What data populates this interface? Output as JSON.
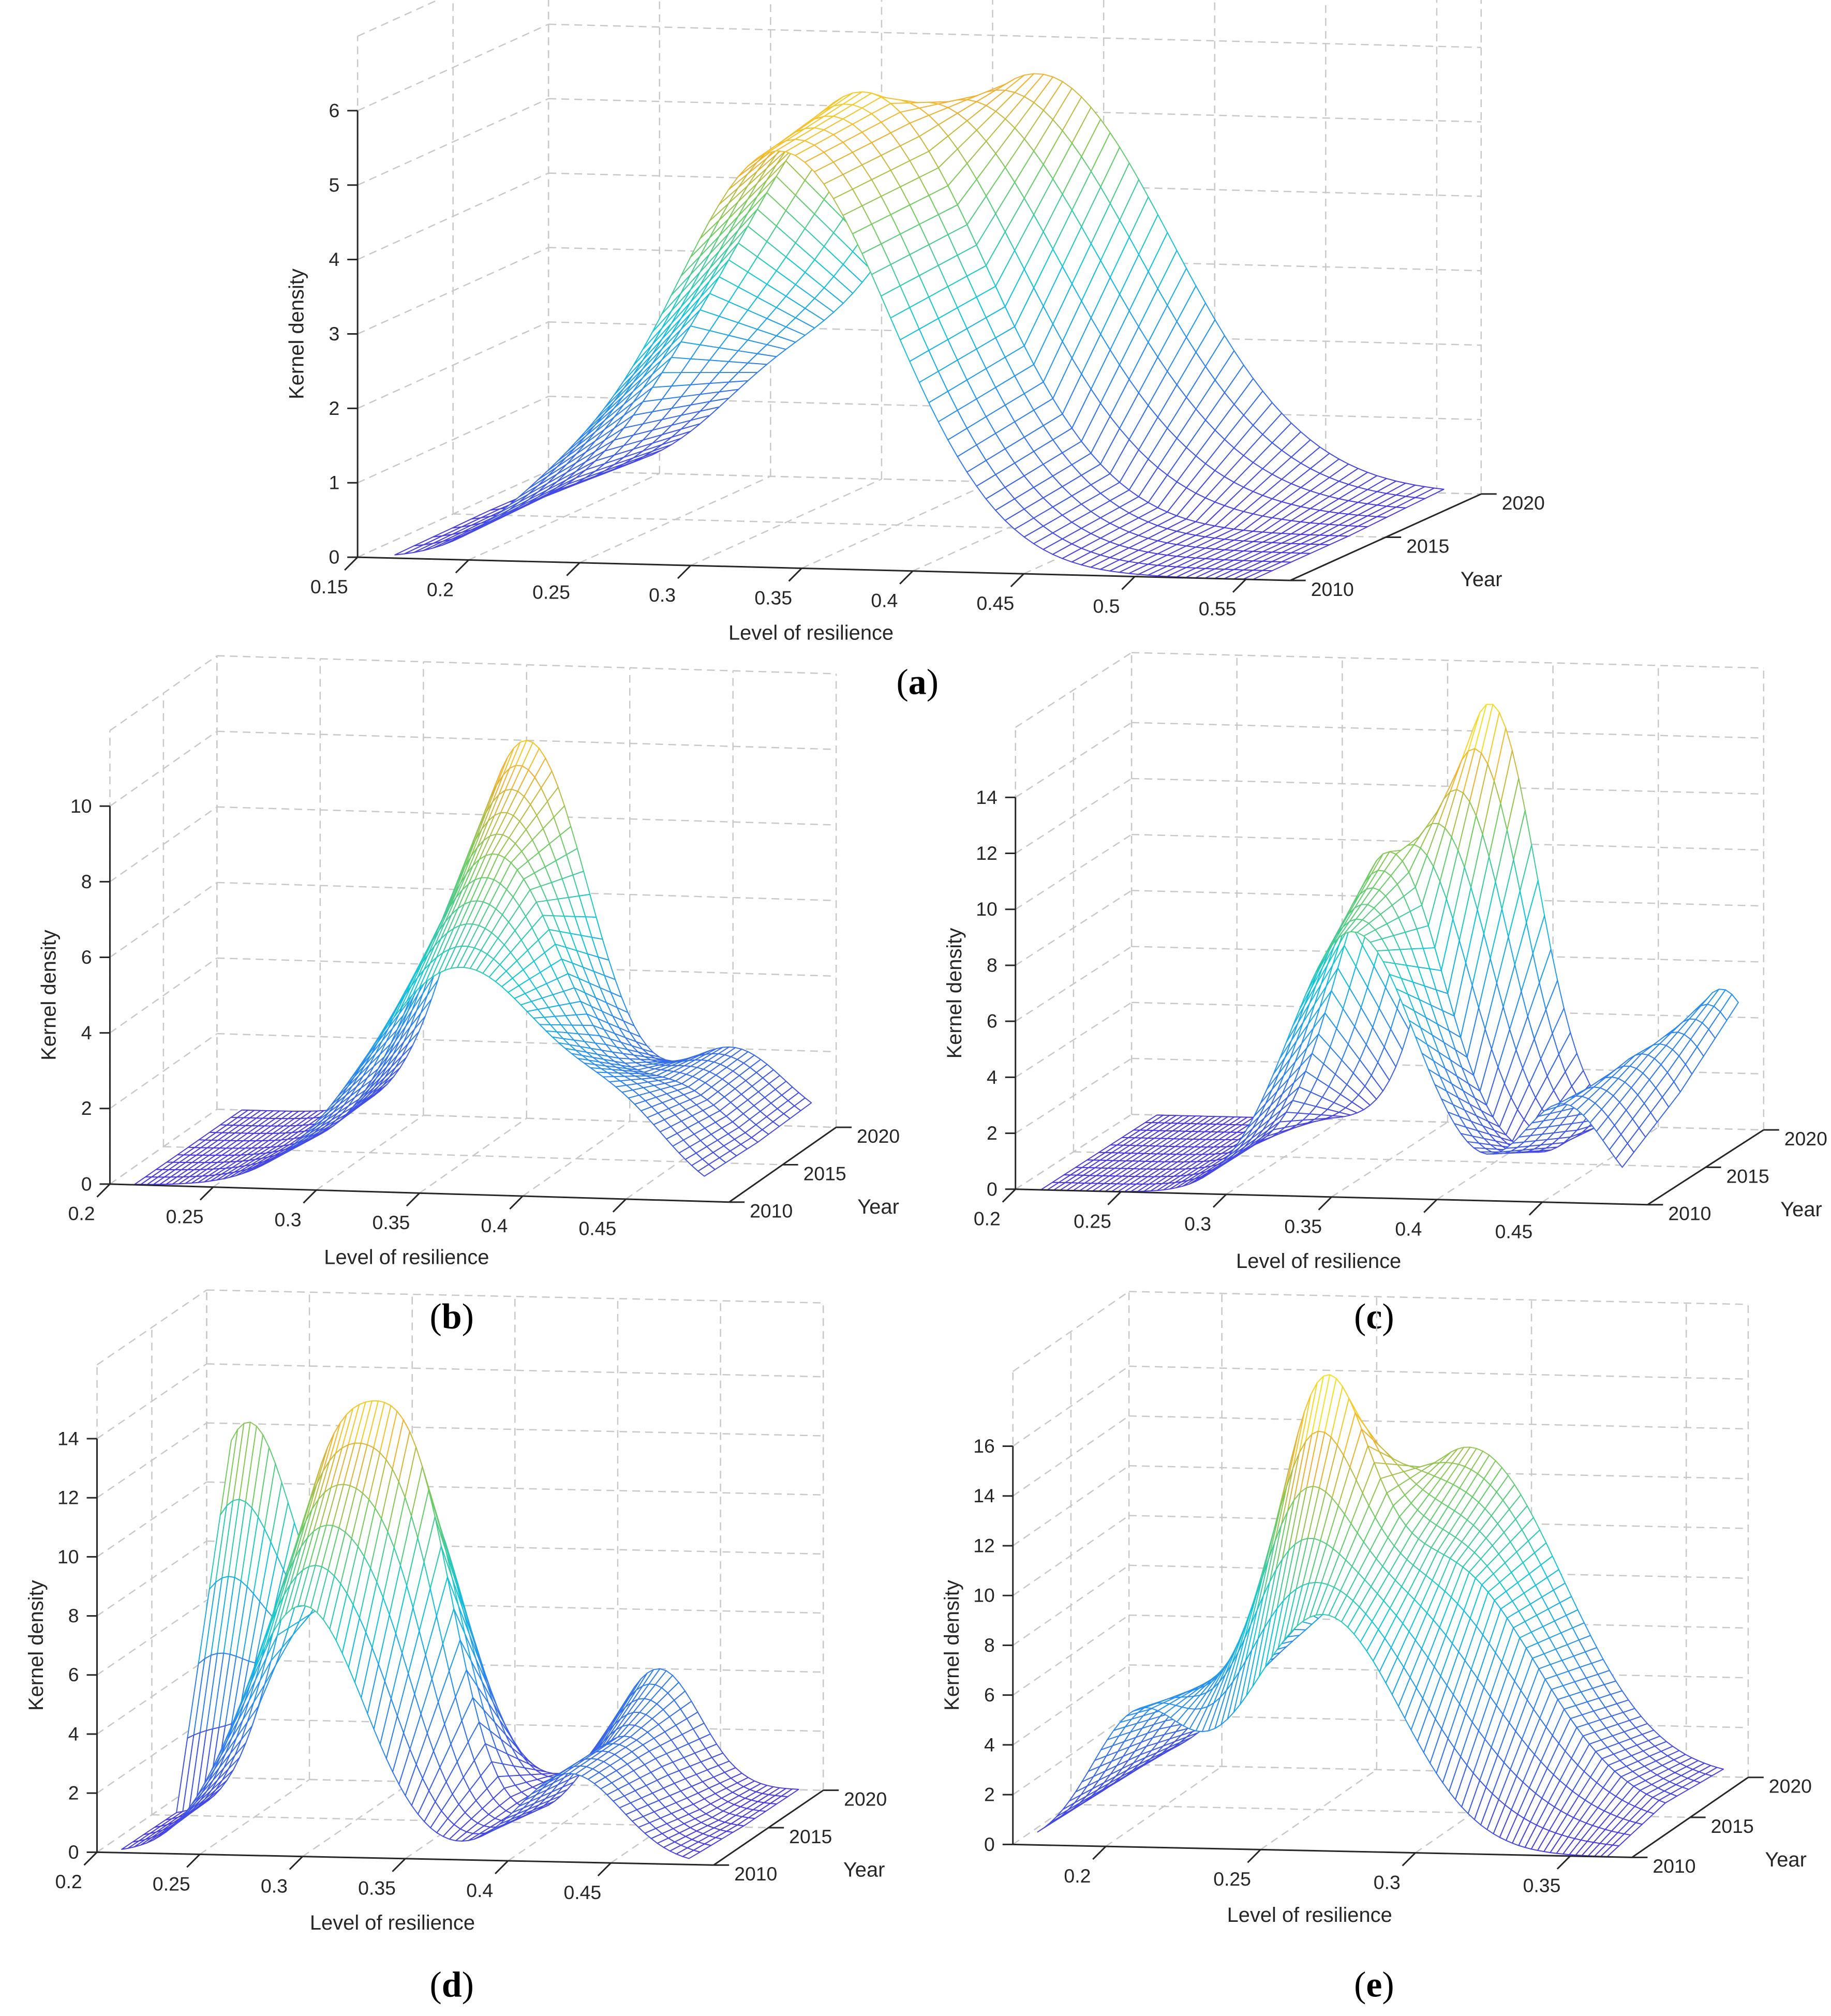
{
  "colors": {
    "low": "#4a3ae0",
    "mid_low": "#2a8cf0",
    "mid": "#10c8d8",
    "mid_high": "#70cc60",
    "high_mid": "#f0b030",
    "high": "#f8f020",
    "grid": "#c8c8c8",
    "axis": "#262626"
  },
  "chart_data": [
    {
      "caption": "a",
      "type": "surface-mesh",
      "xlabel": "Level of resilience",
      "ylabel": "Year",
      "zlabel": "Kernel density",
      "xlim": [
        0.15,
        0.57
      ],
      "ylim": [
        2010,
        2020
      ],
      "zlim": [
        0,
        7
      ],
      "xticks": [
        "0.15",
        "0.2",
        "0.25",
        "0.3",
        "0.35",
        "0.4",
        "0.45",
        "0.5",
        "0.55"
      ],
      "yticks": [
        "2010",
        "2015",
        "2020"
      ],
      "zticks": [
        "0",
        "1",
        "2",
        "3",
        "4",
        "5",
        "6"
      ],
      "surface": [
        {
          "year": 2010,
          "components": [
            {
              "mu": 0.34,
              "sd": 0.05,
              "h": 5.6
            },
            {
              "mu": 0.24,
              "sd": 0.03,
              "h": 0.6
            }
          ]
        },
        {
          "year": 2015,
          "components": [
            {
              "mu": 0.335,
              "sd": 0.055,
              "h": 5.8
            },
            {
              "mu": 0.25,
              "sd": 0.03,
              "h": 0.5
            }
          ]
        },
        {
          "year": 2020,
          "components": [
            {
              "mu": 0.37,
              "sd": 0.06,
              "h": 5.5
            },
            {
              "mu": 0.25,
              "sd": 0.03,
              "h": 0.8
            }
          ]
        }
      ]
    },
    {
      "caption": "b",
      "type": "surface-mesh",
      "xlabel": "Level of resilience",
      "ylabel": "Year",
      "zlabel": "Kernel density",
      "xlim": [
        0.2,
        0.5
      ],
      "ylim": [
        2010,
        2020
      ],
      "zlim": [
        0,
        12
      ],
      "xticks": [
        "0.2",
        "0.25",
        "0.3",
        "0.35",
        "0.4",
        "0.45"
      ],
      "yticks": [
        "2010",
        "2015",
        "2020"
      ],
      "zticks": [
        "0",
        "2",
        "4",
        "6",
        "8",
        "10"
      ],
      "surface": [
        {
          "year": 2010,
          "components": [
            {
              "mu": 0.37,
              "sd": 0.045,
              "h": 6.0
            },
            {
              "mu": 0.45,
              "sd": 0.025,
              "h": 1.5
            }
          ]
        },
        {
          "year": 2015,
          "components": [
            {
              "mu": 0.36,
              "sd": 0.035,
              "h": 8.0
            },
            {
              "mu": 0.45,
              "sd": 0.025,
              "h": 1.8
            }
          ]
        },
        {
          "year": 2020,
          "components": [
            {
              "mu": 0.35,
              "sd": 0.03,
              "h": 10.0
            },
            {
              "mu": 0.45,
              "sd": 0.025,
              "h": 2.0
            }
          ]
        }
      ]
    },
    {
      "caption": "c",
      "type": "surface-mesh",
      "xlabel": "Level of resilience",
      "ylabel": "Year",
      "zlabel": "Kernel density",
      "xlim": [
        0.2,
        0.5
      ],
      "ylim": [
        2010,
        2020
      ],
      "zlim": [
        0,
        16.5
      ],
      "xticks": [
        "0.2",
        "0.25",
        "0.3",
        "0.35",
        "0.4",
        "0.45"
      ],
      "yticks": [
        "2010",
        "2015",
        "2020"
      ],
      "zticks": [
        "0",
        "2",
        "4",
        "6",
        "8",
        "10",
        "12",
        "14"
      ],
      "surface": [
        {
          "year": 2010,
          "components": [
            {
              "mu": 0.36,
              "sd": 0.03,
              "h": 9.5
            },
            {
              "mu": 0.46,
              "sd": 0.02,
              "h": 3.5
            }
          ]
        },
        {
          "year": 2015,
          "components": [
            {
              "mu": 0.35,
              "sd": 0.025,
              "h": 11.0
            },
            {
              "mu": 0.47,
              "sd": 0.02,
              "h": 4.0
            }
          ]
        },
        {
          "year": 2020,
          "components": [
            {
              "mu": 0.37,
              "sd": 0.022,
              "h": 15.0
            },
            {
              "mu": 0.48,
              "sd": 0.018,
              "h": 5.0
            }
          ]
        }
      ]
    },
    {
      "caption": "d",
      "type": "surface-mesh",
      "xlabel": "Level of resilience",
      "ylabel": "Year",
      "zlabel": "Kernel density",
      "xlim": [
        0.2,
        0.5
      ],
      "ylim": [
        2010,
        2020
      ],
      "zlim": [
        0,
        16.5
      ],
      "xticks": [
        "0.2",
        "0.25",
        "0.3",
        "0.35",
        "0.4",
        "0.45"
      ],
      "yticks": [
        "2010",
        "2015",
        "2020"
      ],
      "zticks": [
        "0",
        "2",
        "4",
        "6",
        "8",
        "10",
        "12",
        "14"
      ],
      "surface": [
        {
          "year": 2010,
          "components": [
            {
              "mu": 0.3,
              "sd": 0.03,
              "h": 8.5
            },
            {
              "mu": 0.43,
              "sd": 0.025,
              "h": 3.0
            }
          ]
        },
        {
          "year": 2015,
          "components": [
            {
              "mu": 0.29,
              "sd": 0.025,
              "h": 12.0
            },
            {
              "mu": 0.33,
              "sd": 0.02,
              "h": 9.0
            },
            {
              "mu": 0.43,
              "sd": 0.02,
              "h": 3.0
            }
          ]
        },
        {
          "year": 2020,
          "components": [
            {
              "mu": 0.22,
              "sd": 0.025,
              "h": 12.0
            },
            {
              "mu": 0.3,
              "sd": 0.025,
              "h": 10.0
            },
            {
              "mu": 0.42,
              "sd": 0.02,
              "h": 4.0
            }
          ]
        }
      ]
    },
    {
      "caption": "e",
      "type": "surface-mesh",
      "xlabel": "Level of resilience",
      "ylabel": "Year",
      "zlabel": "Kernel density",
      "xlim": [
        0.17,
        0.37
      ],
      "ylim": [
        2010,
        2020
      ],
      "zlim": [
        0,
        19
      ],
      "xticks": [
        "0.2",
        "0.25",
        "0.3",
        "0.35"
      ],
      "yticks": [
        "2010",
        "2015",
        "2020"
      ],
      "zticks": [
        "0",
        "2",
        "4",
        "6",
        "8",
        "10",
        "12",
        "14",
        "16"
      ],
      "surface": [
        {
          "year": 2010,
          "components": [
            {
              "mu": 0.27,
              "sd": 0.025,
              "h": 9.5
            },
            {
              "mu": 0.21,
              "sd": 0.015,
              "h": 5.0
            }
          ]
        },
        {
          "year": 2015,
          "components": [
            {
              "mu": 0.25,
              "sd": 0.015,
              "h": 13.0
            },
            {
              "mu": 0.29,
              "sd": 0.03,
              "h": 10.0
            },
            {
              "mu": 0.21,
              "sd": 0.015,
              "h": 4.0
            }
          ]
        },
        {
          "year": 2020,
          "components": [
            {
              "mu": 0.28,
              "sd": 0.03,
              "h": 13.0
            },
            {
              "mu": 0.22,
              "sd": 0.02,
              "h": 3.0
            }
          ]
        }
      ]
    }
  ]
}
